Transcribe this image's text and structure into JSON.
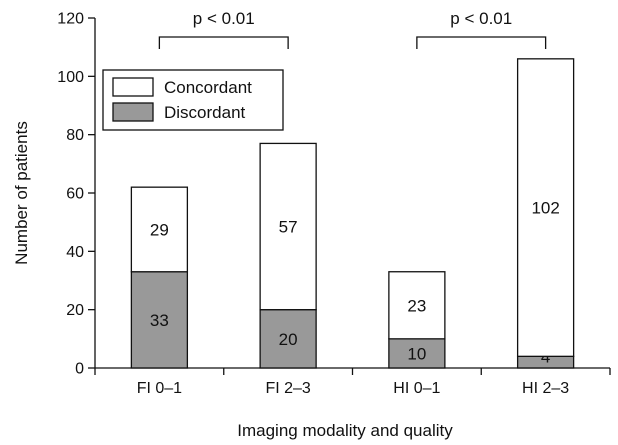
{
  "chart_data": {
    "type": "bar",
    "stacked": true,
    "title": "",
    "xlabel": "Imaging modality and quality",
    "ylabel": "Number of patients",
    "ylim": [
      0,
      120
    ],
    "yticks": [
      0,
      20,
      40,
      60,
      80,
      100,
      120
    ],
    "categories": [
      "FI 0–1",
      "FI 2–3",
      "HI 0–1",
      "HI 2–3"
    ],
    "series": [
      {
        "name": "Discordant",
        "values": [
          33,
          20,
          10,
          4
        ],
        "color": "#999999"
      },
      {
        "name": "Concordant",
        "values": [
          29,
          57,
          23,
          102
        ],
        "color": "#ffffff"
      }
    ],
    "legend": {
      "position": "top-left",
      "order": [
        "Concordant",
        "Discordant"
      ]
    },
    "grid": false,
    "annotations": [
      {
        "text": "p < 0.01",
        "between": [
          "FI 0–1",
          "FI 2–3"
        ]
      },
      {
        "text": "p < 0.01",
        "between": [
          "HI 0–1",
          "HI 2–3"
        ]
      }
    ]
  }
}
